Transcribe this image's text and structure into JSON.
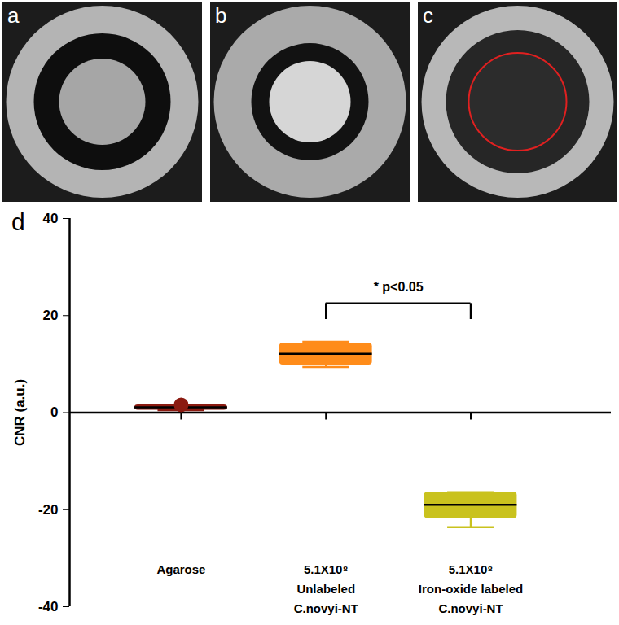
{
  "panels": [
    {
      "label": "a"
    },
    {
      "label": "b"
    },
    {
      "label": "c"
    }
  ],
  "chart_data": {
    "type": "box",
    "title": "d",
    "ylabel": "CNR (a.u.)",
    "categories": [
      "Agarose",
      "5.1X10⁸\nUnlabeled\nC.novyi-NT",
      "5.1X10⁸\nIron-oxide labeled\nC.novyi-NT"
    ],
    "colors": [
      "#8b1a10",
      "#ff8c1a",
      "#c9c21e"
    ],
    "whisker_low": [
      0.5,
      9.4,
      -23.6
    ],
    "q1": [
      0.5,
      9.8,
      -21.8
    ],
    "median": [
      1.1,
      12.1,
      -19.0
    ],
    "q3": [
      1.6,
      14.3,
      -16.4
    ],
    "whisker_high": [
      1.6,
      14.6,
      -16.4
    ],
    "outliers": [
      [
        1.6
      ],
      [],
      []
    ],
    "ylim": [
      -40,
      40
    ],
    "yticks": [
      -40,
      -20,
      0,
      20,
      40
    ],
    "annotations": [
      {
        "text": "* p<0.05",
        "from": 1,
        "to": 2,
        "y": 22.5,
        "y2": 19.2
      }
    ]
  }
}
